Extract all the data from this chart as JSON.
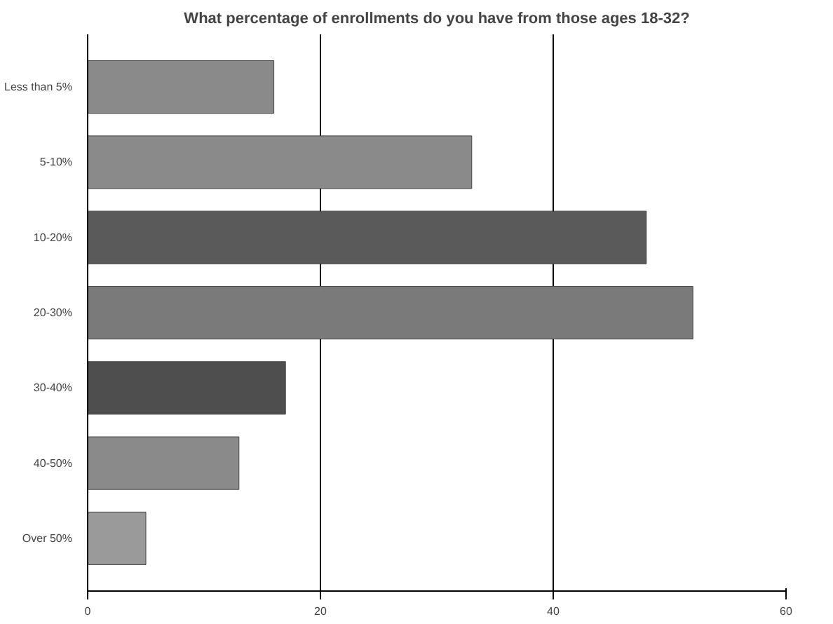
{
  "chart_data": {
    "type": "bar",
    "orientation": "horizontal",
    "title": "What percentage of enrollments do you have from those ages 18-32?",
    "categories": [
      "Less than 5%",
      "5-10%",
      "10-20%",
      "20-30%",
      "30-40%",
      "40-50%",
      "Over 50%"
    ],
    "values": [
      16,
      33,
      48,
      52,
      17,
      13,
      5
    ],
    "colors": [
      "#8a8a8a",
      "#8a8a8a",
      "#5a5a5a",
      "#7a7a7a",
      "#4e4e4e",
      "#8a8a8a",
      "#9a9a9a"
    ],
    "xlim": [
      0,
      60
    ],
    "xticks": [
      0,
      20,
      40,
      60
    ],
    "grid": "x"
  }
}
